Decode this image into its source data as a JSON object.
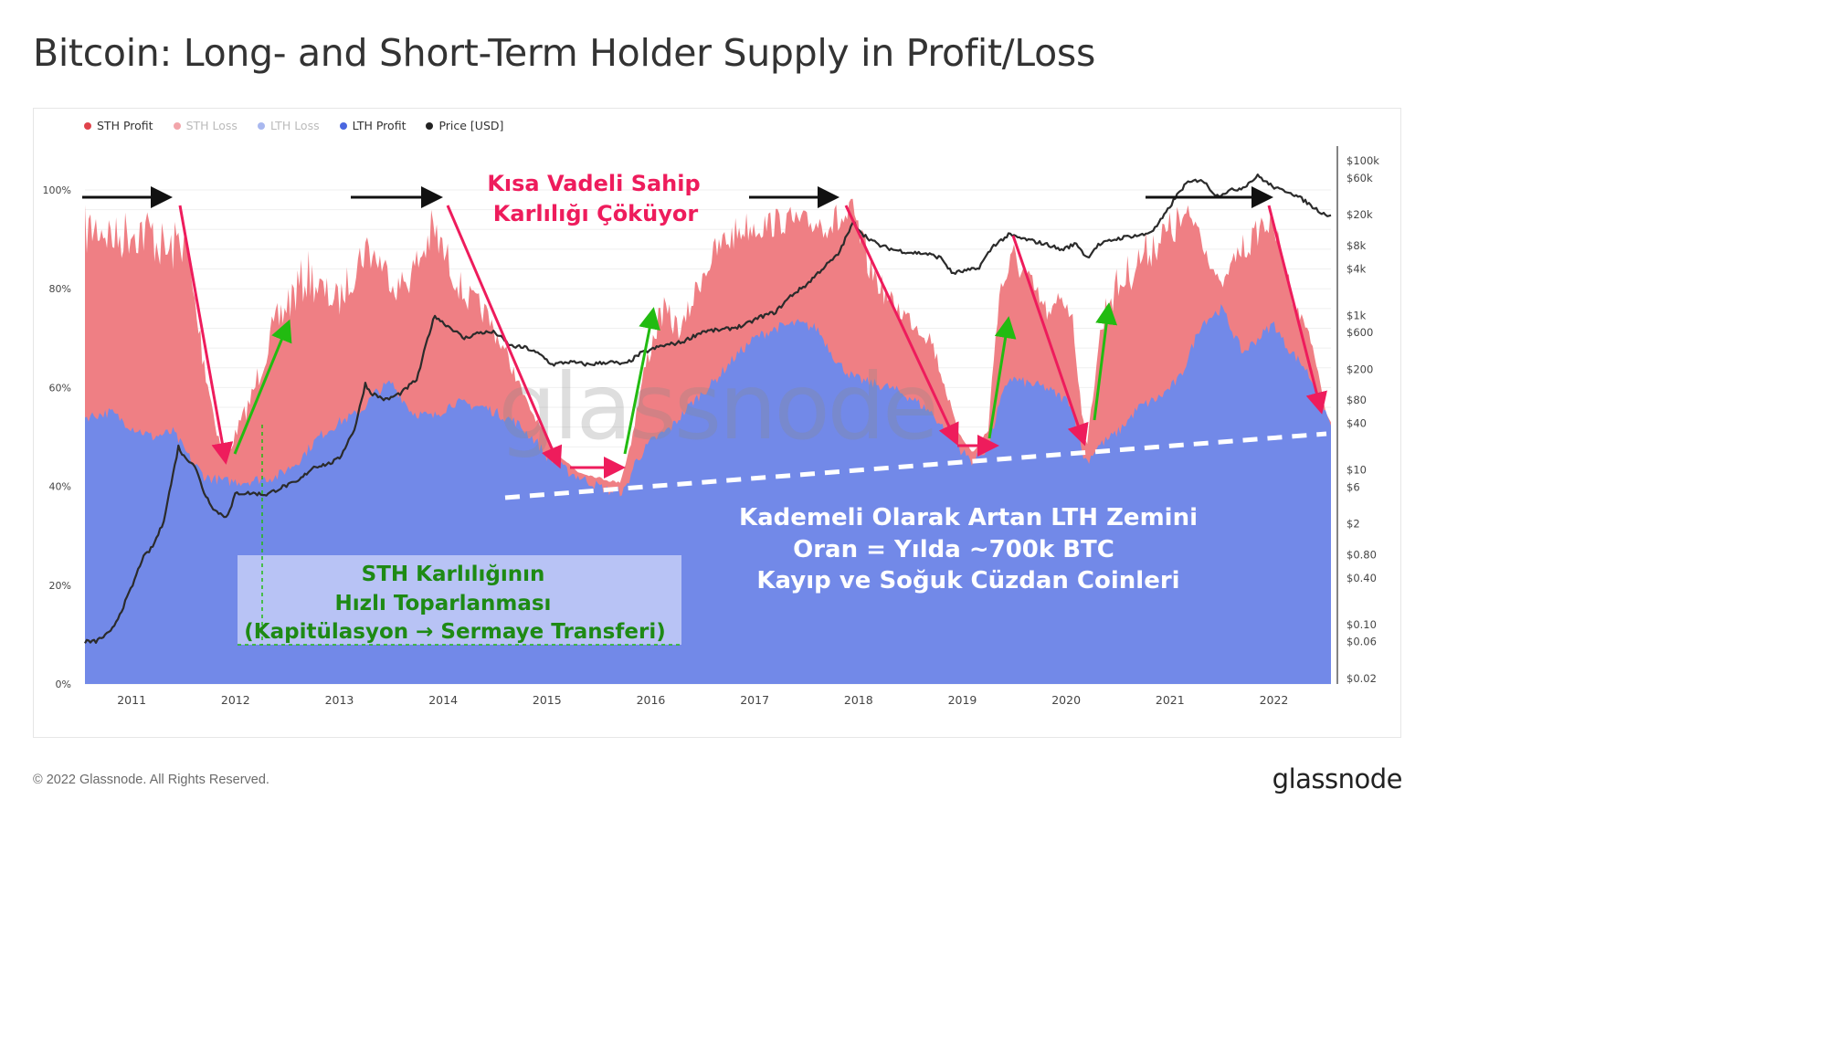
{
  "page": {
    "title": "Bitcoin: Long- and Short-Term Holder Supply in Profit/Loss",
    "copyright": "© 2022 Glassnode. All Rights Reserved.",
    "brand": "glassnode",
    "watermark": "glassnode"
  },
  "legend": [
    {
      "label": "STH Profit",
      "color": "#e0434b",
      "text_color": "#333333"
    },
    {
      "label": "STH Loss",
      "color": "#f2a5aa",
      "text_color": "#bbbbbb"
    },
    {
      "label": "LTH Loss",
      "color": "#a9b8ef",
      "text_color": "#bbbbbb"
    },
    {
      "label": "LTH Profit",
      "color": "#4a67e0",
      "text_color": "#333333"
    },
    {
      "label": "Price [USD]",
      "color": "#222222",
      "text_color": "#333333"
    }
  ],
  "colors": {
    "lth_area": "#7289e8",
    "sth_area": "#ef7f84",
    "price_line": "#2b2b2b",
    "annotation_red": "#ee1c5c",
    "annotation_green": "#22bb11",
    "annotation_black": "#111111",
    "annotation_box_bg": "#bcc6f5",
    "annotation_box_text": "#1e8a14"
  },
  "annotations": {
    "red_title": [
      "Kısa Vadeli Sahip",
      "Karlılığı Çöküyor"
    ],
    "white_note": [
      "Kademeli Olarak Artan LTH Zemini",
      "Oran = Yılda ~700k BTC",
      "Kayıp ve Soğuk Cüzdan Coinleri"
    ],
    "green_box": [
      "STH Karlılığının",
      "Hızlı Toparlanması",
      "(Kapitülasyon → Sermaye Transferi)"
    ]
  },
  "chart_data": {
    "type": "area",
    "x_axis": {
      "labels": [
        "2011",
        "2012",
        "2013",
        "2014",
        "2015",
        "2016",
        "2017",
        "2018",
        "2019",
        "2020",
        "2021",
        "2022"
      ],
      "range": [
        2010.55,
        2022.55
      ]
    },
    "y_axis_left": {
      "labels": [
        "0%",
        "20%",
        "40%",
        "60%",
        "80%",
        "100%"
      ],
      "range": [
        0,
        100
      ]
    },
    "y_axis_right": {
      "labels": [
        "$0.02",
        "$0.06",
        "$0.10",
        "$0.40",
        "$0.80",
        "$2",
        "$6",
        "$10",
        "$40",
        "$80",
        "$200",
        "$600",
        "$1k",
        "$4k",
        "$8k",
        "$20k",
        "$60k",
        "$100k"
      ],
      "scale": "log",
      "range": [
        0.02,
        100000
      ]
    },
    "series": [
      {
        "name": "LTH Profit",
        "unit": "%",
        "x": [
          2010.55,
          2010.8,
          2011.0,
          2011.2,
          2011.4,
          2011.55,
          2011.7,
          2011.9,
          2012.1,
          2012.4,
          2012.6,
          2012.8,
          2013.0,
          2013.2,
          2013.35,
          2013.5,
          2013.7,
          2013.9,
          2014.1,
          2014.4,
          2014.7,
          2014.9,
          2015.0,
          2015.2,
          2015.4,
          2015.6,
          2015.75,
          2015.85,
          2016.0,
          2016.2,
          2016.4,
          2016.6,
          2016.8,
          2017.0,
          2017.2,
          2017.4,
          2017.6,
          2017.8,
          2017.95,
          2018.1,
          2018.3,
          2018.5,
          2018.7,
          2018.85,
          2019.0,
          2019.1,
          2019.25,
          2019.35,
          2019.45,
          2019.6,
          2019.8,
          2019.95,
          2020.05,
          2020.15,
          2020.2,
          2020.3,
          2020.5,
          2020.7,
          2020.9,
          2021.1,
          2021.3,
          2021.5,
          2021.7,
          2021.85,
          2022.0,
          2022.1,
          2022.3,
          2022.45,
          2022.55
        ],
        "y": [
          54,
          55,
          52,
          50,
          51,
          46,
          42,
          41,
          41,
          42,
          45,
          50,
          53,
          55,
          59,
          61,
          55,
          54,
          57,
          56,
          53,
          49,
          46,
          43,
          41,
          39,
          39,
          45,
          49,
          52,
          57,
          61,
          66,
          70,
          72,
          73,
          72,
          65,
          62,
          61,
          60,
          58,
          55,
          51,
          47,
          45,
          48,
          56,
          62,
          61,
          60,
          58,
          57,
          47,
          45,
          48,
          51,
          56,
          58,
          62,
          73,
          76,
          67,
          70,
          73,
          69,
          64,
          58,
          52
        ]
      },
      {
        "name": "STH Profit",
        "unit": "%",
        "x": [
          2010.55,
          2010.7,
          2010.85,
          2011.0,
          2011.2,
          2011.35,
          2011.5,
          2011.65,
          2011.8,
          2011.9,
          2012.0,
          2012.15,
          2012.3,
          2012.5,
          2012.7,
          2012.85,
          2013.0,
          2013.1,
          2013.25,
          2013.4,
          2013.55,
          2013.7,
          2013.9,
          2014.0,
          2014.2,
          2014.4,
          2014.6,
          2014.8,
          2015.0,
          2015.15,
          2015.3,
          2015.5,
          2015.7,
          2015.8,
          2015.95,
          2016.1,
          2016.3,
          2016.5,
          2016.7,
          2016.9,
          2017.1,
          2017.3,
          2017.5,
          2017.7,
          2017.85,
          2017.95,
          2018.1,
          2018.3,
          2018.5,
          2018.7,
          2018.85,
          2018.95,
          2019.1,
          2019.25,
          2019.35,
          2019.5,
          2019.7,
          2019.85,
          2019.95,
          2020.05,
          2020.15,
          2020.2,
          2020.3,
          2020.4,
          2020.55,
          2020.7,
          2020.85,
          2021.0,
          2021.1,
          2021.25,
          2021.4,
          2021.5,
          2021.65,
          2021.8,
          2021.9,
          2022.0,
          2022.1,
          2022.2,
          2022.35,
          2022.5,
          2022.55
        ],
        "y": [
          97,
          98,
          95,
          98,
          97,
          92,
          97,
          75,
          55,
          45,
          52,
          60,
          72,
          82,
          88,
          83,
          81,
          86,
          93,
          89,
          83,
          87,
          97,
          92,
          82,
          78,
          69,
          58,
          50,
          46,
          43,
          42,
          41,
          49,
          67,
          79,
          74,
          87,
          93,
          96,
          96,
          97,
          96,
          97,
          98,
          99,
          88,
          80,
          76,
          72,
          60,
          52,
          47,
          52,
          82,
          90,
          82,
          76,
          82,
          78,
          57,
          48,
          70,
          82,
          86,
          90,
          94,
          96,
          98,
          97,
          86,
          81,
          90,
          93,
          97,
          95,
          88,
          78,
          72,
          55,
          53
        ]
      },
      {
        "name": "Price [USD]",
        "unit": "USD",
        "x": [
          2010.55,
          2010.65,
          2010.8,
          2010.9,
          2011.0,
          2011.1,
          2011.2,
          2011.3,
          2011.4,
          2011.45,
          2011.5,
          2011.6,
          2011.7,
          2011.8,
          2011.9,
          2011.95,
          2012.0,
          2012.15,
          2012.3,
          2012.45,
          2012.6,
          2012.75,
          2012.9,
          2013.0,
          2013.15,
          2013.25,
          2013.3,
          2013.45,
          2013.6,
          2013.75,
          2013.85,
          2013.92,
          2014.0,
          2014.1,
          2014.2,
          2014.35,
          2014.5,
          2014.65,
          2014.8,
          2014.95,
          2015.05,
          2015.2,
          2015.4,
          2015.6,
          2015.75,
          2015.9,
          2016.1,
          2016.3,
          2016.5,
          2016.7,
          2016.9,
          2017.05,
          2017.2,
          2017.35,
          2017.5,
          2017.65,
          2017.8,
          2017.95,
          2018.05,
          2018.2,
          2018.35,
          2018.5,
          2018.65,
          2018.8,
          2018.9,
          2019.0,
          2019.15,
          2019.3,
          2019.45,
          2019.55,
          2019.7,
          2019.85,
          2019.95,
          2020.1,
          2020.2,
          2020.3,
          2020.45,
          2020.6,
          2020.75,
          2020.85,
          2020.95,
          2021.05,
          2021.15,
          2021.3,
          2021.45,
          2021.55,
          2021.7,
          2021.85,
          2021.95,
          2022.05,
          2022.15,
          2022.3,
          2022.4,
          2022.5,
          2022.55
        ],
        "y": [
          0.06,
          0.06,
          0.08,
          0.15,
          0.3,
          0.7,
          1.0,
          2.0,
          9,
          20,
          15,
          12,
          5,
          3,
          2.5,
          3.0,
          5,
          5,
          4.8,
          6,
          7,
          11,
          12,
          14,
          35,
          130,
          100,
          80,
          100,
          150,
          500,
          1000,
          800,
          650,
          500,
          600,
          600,
          400,
          380,
          300,
          230,
          250,
          230,
          250,
          230,
          320,
          400,
          450,
          620,
          650,
          740,
          950,
          1100,
          1800,
          2500,
          4000,
          6000,
          16000,
          11000,
          8000,
          7000,
          6500,
          6300,
          5500,
          3500,
          3700,
          4000,
          8000,
          11000,
          10000,
          9000,
          8000,
          7000,
          8500,
          5500,
          8000,
          9500,
          10500,
          11000,
          13000,
          20000,
          33000,
          50000,
          58000,
          35000,
          40000,
          45000,
          64000,
          50000,
          42000,
          40000,
          30000,
          24000,
          20000,
          20000
        ]
      }
    ]
  }
}
